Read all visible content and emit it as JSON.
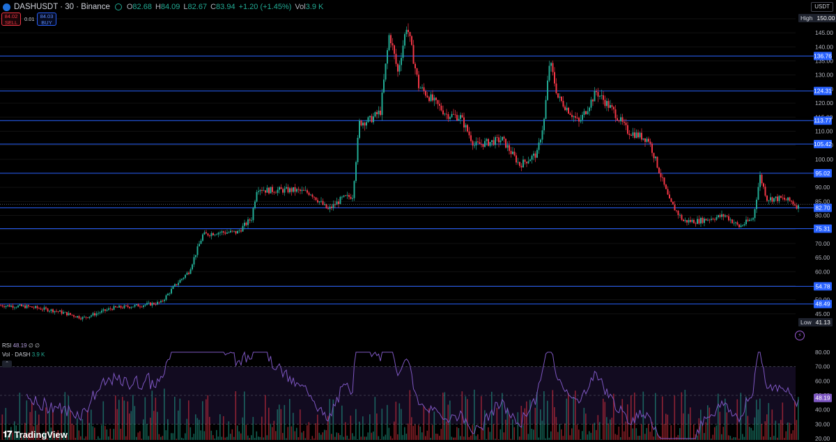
{
  "header": {
    "symbol": "DASHUSDT · 30 · Binance",
    "ohlc": [
      {
        "key": "O",
        "value": "82.68"
      },
      {
        "key": "H",
        "value": "84.09"
      },
      {
        "key": "L",
        "value": "82.67"
      },
      {
        "key": "C",
        "value": "83.94"
      }
    ],
    "change": "+1.20 (+1.45%)",
    "volume_key": "Vol",
    "volume_value": "3.9 K"
  },
  "trade": {
    "sell_price": "84.02",
    "sell_label": "SELL",
    "spread": "0.01",
    "buy_price": "84.03",
    "buy_label": "BUY"
  },
  "price_axis": {
    "currency": "USDT",
    "high_label": "High",
    "high_value": "150.00",
    "low_label": "Low",
    "low_value": "41.13"
  },
  "indicators": {
    "rsi_label": "RSI",
    "rsi_value": "48.19",
    "rsi_extra": "∅ ∅",
    "vol_label": "Vol · DASH",
    "vol_value": "3.9 K"
  },
  "brand": {
    "name": "TradingView",
    "icon": "tradingview-logo-icon"
  },
  "colors": {
    "up": "#22ab94",
    "down": "#f23645",
    "level_line": "#2962ff",
    "rsi_line": "#7e57c2"
  },
  "chart_data": {
    "type": "candlestick",
    "interval": "30",
    "y_range": [
      41.13,
      150.0
    ],
    "price_ticks": [
      150,
      145,
      140,
      135,
      130,
      125,
      120,
      115,
      110,
      105,
      100,
      95,
      90,
      85,
      80,
      75,
      70,
      65,
      60,
      55,
      50,
      45
    ],
    "price_levels": [
      136.76,
      124.31,
      113.77,
      105.42,
      95.02,
      82.7,
      75.31,
      54.78,
      48.49
    ],
    "current_price": 83.94,
    "close_path": [
      [
        0,
        48
      ],
      [
        40,
        47.5
      ],
      [
        80,
        46
      ],
      [
        118,
        43.5
      ],
      [
        160,
        47
      ],
      [
        200,
        48
      ],
      [
        230,
        49
      ],
      [
        250,
        55
      ],
      [
        270,
        60
      ],
      [
        290,
        73
      ],
      [
        310,
        74
      ],
      [
        340,
        74
      ],
      [
        360,
        79
      ],
      [
        368,
        90
      ],
      [
        380,
        89
      ],
      [
        420,
        89
      ],
      [
        445,
        88
      ],
      [
        470,
        82
      ],
      [
        490,
        86
      ],
      [
        505,
        87
      ],
      [
        515,
        113
      ],
      [
        530,
        114
      ],
      [
        545,
        117
      ],
      [
        558,
        145
      ],
      [
        570,
        131
      ],
      [
        583,
        148
      ],
      [
        600,
        126
      ],
      [
        640,
        116
      ],
      [
        660,
        115
      ],
      [
        680,
        105
      ],
      [
        720,
        107
      ],
      [
        745,
        98
      ],
      [
        770,
        102
      ],
      [
        780,
        114
      ],
      [
        788,
        135
      ],
      [
        800,
        122
      ],
      [
        830,
        113
      ],
      [
        855,
        124
      ],
      [
        880,
        117
      ],
      [
        900,
        110
      ],
      [
        930,
        107
      ],
      [
        945,
        96
      ],
      [
        960,
        85
      ],
      [
        980,
        78
      ],
      [
        1000,
        78
      ],
      [
        1020,
        79
      ],
      [
        1040,
        80
      ],
      [
        1060,
        76
      ],
      [
        1080,
        79
      ],
      [
        1090,
        94
      ],
      [
        1100,
        86
      ],
      [
        1120,
        86
      ],
      [
        1135,
        85
      ],
      [
        1145,
        83
      ]
    ],
    "rsi": {
      "levels": [
        70,
        50,
        30
      ],
      "ticks": [
        80,
        70,
        60,
        50,
        40,
        30,
        20
      ],
      "last": 48.19
    },
    "volume": {
      "unit": "DASH",
      "last": "3.9 K"
    }
  }
}
